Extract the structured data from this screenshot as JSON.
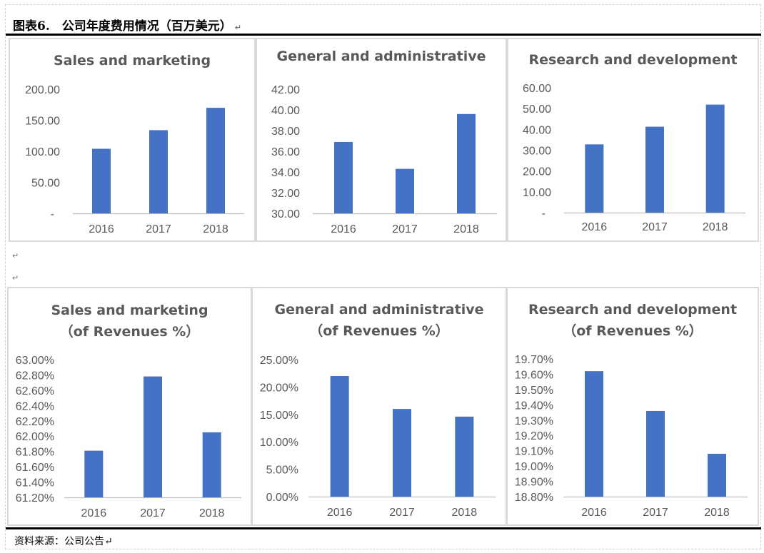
{
  "header": {
    "figure_title": "图表6.　公司年度费用情况（百万美元）",
    "para_mark": "↵"
  },
  "footer": {
    "source": "资料来源：公司公告↵"
  },
  "chart_data": [
    {
      "id": "sm",
      "type": "bar",
      "title": [
        "Sales and marketing"
      ],
      "categories": [
        "2016",
        "2017",
        "2018"
      ],
      "values": [
        104.0,
        134.0,
        170.0
      ],
      "ylim": [
        0,
        200
      ],
      "yticks": [
        "-",
        "50.00",
        "100.00",
        "150.00",
        "200.00"
      ],
      "grid": false,
      "legend": "none",
      "bar_color": "#4472c4"
    },
    {
      "id": "ga",
      "type": "bar",
      "title": [
        "General and administrative"
      ],
      "categories": [
        "2016",
        "2017",
        "2018"
      ],
      "values": [
        36.9,
        34.3,
        39.6
      ],
      "ylim": [
        30,
        42
      ],
      "yticks": [
        "30.00",
        "32.00",
        "34.00",
        "36.00",
        "38.00",
        "40.00",
        "42.00"
      ],
      "grid": false,
      "legend": "none",
      "bar_color": "#4472c4"
    },
    {
      "id": "rd",
      "type": "bar",
      "title": [
        "Research and development"
      ],
      "categories": [
        "2016",
        "2017",
        "2018"
      ],
      "values": [
        32.8,
        41.3,
        51.9
      ],
      "ylim": [
        0,
        60
      ],
      "yticks": [
        "-",
        "10.00",
        "20.00",
        "30.00",
        "40.00",
        "50.00",
        "60.00"
      ],
      "grid": false,
      "legend": "none",
      "bar_color": "#4472c4"
    },
    {
      "id": "smp",
      "type": "bar",
      "title": [
        "Sales and marketing",
        "（of Revenues %）"
      ],
      "categories": [
        "2016",
        "2017",
        "2018"
      ],
      "values": [
        61.81,
        62.78,
        62.05
      ],
      "ylim": [
        61.2,
        63.0
      ],
      "yticks": [
        "61.20%",
        "61.40%",
        "61.60%",
        "61.80%",
        "62.00%",
        "62.20%",
        "62.40%",
        "62.60%",
        "62.80%",
        "63.00%"
      ],
      "grid": false,
      "legend": "none",
      "bar_color": "#4472c4"
    },
    {
      "id": "gap",
      "type": "bar",
      "title": [
        "General and administrative",
        "（of Revenues %）"
      ],
      "categories": [
        "2016",
        "2017",
        "2018"
      ],
      "values": [
        22.0,
        16.0,
        14.6
      ],
      "ylim": [
        0,
        25
      ],
      "yticks": [
        "0.00%",
        "5.00%",
        "10.00%",
        "15.00%",
        "20.00%",
        "25.00%"
      ],
      "grid": false,
      "legend": "none",
      "bar_color": "#4472c4"
    },
    {
      "id": "rdp",
      "type": "bar",
      "title": [
        "Research and development",
        "（of Revenues %）"
      ],
      "categories": [
        "2016",
        "2017",
        "2018"
      ],
      "values": [
        19.62,
        19.36,
        19.08
      ],
      "ylim": [
        18.8,
        19.7
      ],
      "yticks": [
        "18.80%",
        "18.90%",
        "19.00%",
        "19.10%",
        "19.20%",
        "19.30%",
        "19.40%",
        "19.50%",
        "19.60%",
        "19.70%"
      ],
      "grid": false,
      "legend": "none",
      "bar_color": "#4472c4"
    }
  ]
}
